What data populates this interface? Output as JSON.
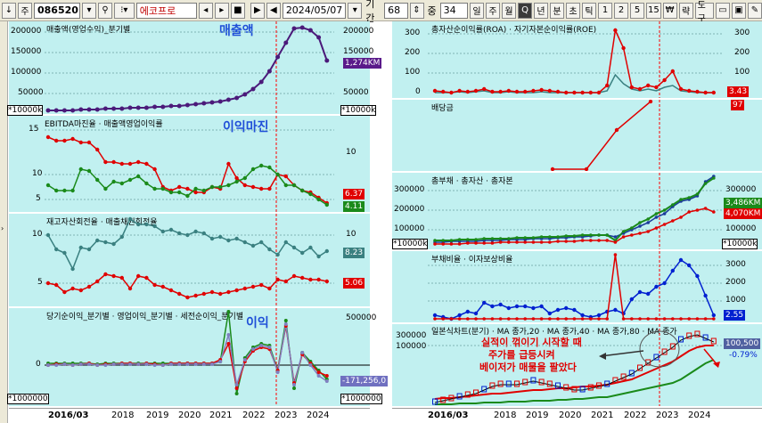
{
  "toolbar": {
    "arrow_label": "↓",
    "mode_label": "주",
    "code": "086520",
    "name": "에코프로",
    "date": "2024/05/07",
    "period_label": "기간",
    "period_value": "68",
    "overlap_label": "중",
    "overlap_value": "34",
    "tf": [
      "일",
      "주",
      "월",
      "Q",
      "년",
      "분",
      "초",
      "틱",
      "1",
      "2",
      "5",
      "15"
    ],
    "selected_tf": "Q",
    "currency": "₩",
    "tool_label": "도구",
    "extra_label": "략"
  },
  "left": {
    "p1": {
      "legend": "매출액(영업수익)_분기별",
      "annot": "매출액",
      "ticks": [
        "200000",
        "150000",
        "100000",
        "50000"
      ],
      "rticks": [
        "200000",
        "150000",
        "100000",
        "50000"
      ],
      "pill": "1,274KM",
      "pill_color": "#5a1a8a",
      "unit": "*10000k"
    },
    "p2": {
      "legend": "EBITDA마진율 · 매출액영업이익률",
      "annot": "이익마진",
      "ticks": [
        "15",
        "10",
        "5"
      ],
      "rticks": [
        "15",
        "10",
        "5"
      ],
      "pill1": "6.37",
      "pill2": "4.11"
    },
    "p3": {
      "legend": "재고자산회전율 · 매출채권회전율",
      "ticks": [
        "10",
        "5"
      ],
      "rticks": [
        "10",
        "5"
      ],
      "pill1": "8.23",
      "pill2": "5.06"
    },
    "p4": {
      "legend": "당기순이익_분기별 · 영업이익_분기별 · 세전순이익_분기별",
      "annot": "이익",
      "ticks": [
        "500000",
        "0"
      ],
      "rticks": [
        "500000"
      ],
      "pill1": "-171,256,0",
      "unit": "*1000000"
    },
    "years": [
      "2016/03",
      "2018",
      "2019",
      "2020",
      "2021",
      "2022",
      "2023",
      "2024"
    ]
  },
  "right": {
    "p1": {
      "legend": "총자산순이익률(ROA) · 자기자본순이익률(ROE)",
      "ticks": [
        "300",
        "200",
        "100",
        "0"
      ],
      "rticks": [
        "300",
        "200",
        "100",
        "0"
      ],
      "pill": "3.43"
    },
    "p2": {
      "legend": "배당금",
      "pill": "97"
    },
    "p3": {
      "legend": "총부채 · 총자산 · 총자본",
      "ticks": [
        "300000",
        "200000",
        "100000"
      ],
      "rticks": [
        "300000",
        "200000",
        "100000"
      ],
      "pill1": "3,486KM",
      "pill2": "4,070KM",
      "unit": "*10000k"
    },
    "p4": {
      "legend": "부채비율 · 이자보상비율",
      "ticks": [
        "3000",
        "2000",
        "1000"
      ],
      "rticks": [
        "3000",
        "2000",
        "1000"
      ],
      "pill": "2.55"
    },
    "p5": {
      "legend": "일본식차트(분기) · MA 종가,20 · MA 종가,40 · MA 종가,80 · MA 종가",
      "ticks": [
        "300000",
        "100000"
      ],
      "pill": "100,500",
      "pct": "-0.79%",
      "annot1": "실적이 꺾이기 시작할 때",
      "annot2": "주가를 급등시켜",
      "annot3": "베이저가 매물을 팔았다"
    },
    "years": [
      "2016/03",
      "2018",
      "2019",
      "2020",
      "2021",
      "2022",
      "2023",
      "2024"
    ]
  }
}
